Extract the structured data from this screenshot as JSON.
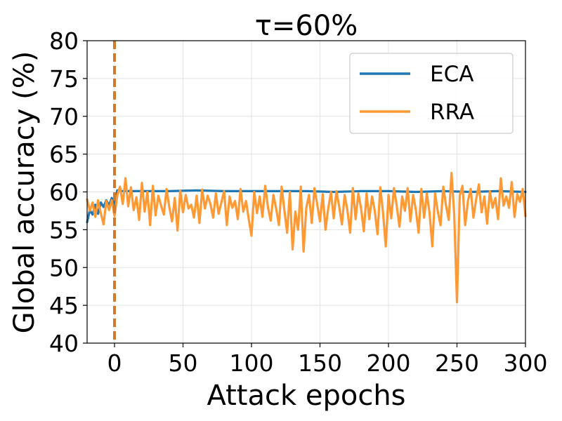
{
  "chart_data": {
    "type": "line",
    "title": "τ=60%",
    "xlabel": "Attack epochs",
    "ylabel": "Global accuracy (%)",
    "xlim": [
      -20,
      300
    ],
    "ylim": [
      40,
      80
    ],
    "xticks": [
      0,
      50,
      100,
      150,
      200,
      250,
      300
    ],
    "yticks": [
      40,
      45,
      50,
      55,
      60,
      65,
      70,
      75,
      80
    ],
    "grid": true,
    "legend_position": "top-right",
    "attack_start_x": 0,
    "colors": {
      "ECA": "#1f77b4",
      "RRA": "#ff9933",
      "marker": "#d07a30"
    },
    "series": [
      {
        "name": "ECA",
        "color": "#1f77b4",
        "x": [
          -20,
          -18,
          -16,
          -14,
          -12,
          -10,
          -8,
          -6,
          -4,
          -2,
          0,
          2,
          5,
          10,
          20,
          40,
          60,
          80,
          100,
          120,
          140,
          160,
          180,
          200,
          220,
          240,
          260,
          280,
          300
        ],
        "values": [
          56.0,
          57.6,
          57.0,
          58.3,
          57.1,
          58.6,
          58.0,
          58.9,
          58.2,
          59.2,
          58.4,
          60.2,
          60.1,
          60.1,
          60.1,
          60.1,
          60.2,
          60.1,
          60.1,
          60.1,
          60.1,
          60.0,
          60.1,
          60.1,
          60.0,
          60.1,
          60.0,
          60.1,
          60.0
        ]
      },
      {
        "name": "RRA",
        "color": "#ff9933",
        "x": [
          -20,
          -18,
          -16,
          -14,
          -12,
          -10,
          -8,
          -6,
          -4,
          -2,
          0,
          2,
          4,
          6,
          8,
          10,
          12,
          14,
          16,
          18,
          20,
          22,
          24,
          26,
          28,
          30,
          32,
          34,
          36,
          38,
          40,
          42,
          44,
          46,
          48,
          50,
          52,
          54,
          56,
          58,
          60,
          62,
          64,
          66,
          68,
          70,
          72,
          74,
          76,
          78,
          80,
          82,
          84,
          86,
          88,
          90,
          92,
          94,
          96,
          98,
          100,
          102,
          104,
          106,
          108,
          110,
          112,
          114,
          116,
          118,
          120,
          122,
          124,
          126,
          128,
          130,
          132,
          134,
          136,
          138,
          140,
          142,
          144,
          146,
          148,
          150,
          152,
          154,
          156,
          158,
          160,
          162,
          164,
          166,
          168,
          170,
          172,
          174,
          176,
          178,
          180,
          182,
          184,
          186,
          188,
          190,
          192,
          194,
          196,
          198,
          200,
          202,
          204,
          206,
          208,
          210,
          212,
          214,
          216,
          218,
          220,
          222,
          224,
          226,
          228,
          230,
          232,
          234,
          236,
          238,
          240,
          242,
          244,
          246,
          248,
          250,
          252,
          254,
          256,
          258,
          260,
          262,
          264,
          266,
          268,
          270,
          272,
          274,
          276,
          278,
          280,
          282,
          284,
          286,
          288,
          290,
          292,
          294,
          296,
          298,
          300
        ],
        "values": [
          59.0,
          57.5,
          58.6,
          56.7,
          58.9,
          57.2,
          55.7,
          58.8,
          57.6,
          58.9,
          56.8,
          59.5,
          60.7,
          58.4,
          61.8,
          58.1,
          60.6,
          57.6,
          59.3,
          56.3,
          61.2,
          57.4,
          60.0,
          55.6,
          60.8,
          56.9,
          59.5,
          58.2,
          57.0,
          60.4,
          58.0,
          56.1,
          59.2,
          54.9,
          60.2,
          57.3,
          59.6,
          57.8,
          58.3,
          56.6,
          59.5,
          55.9,
          60.3,
          57.8,
          59.5,
          58.4,
          56.6,
          59.8,
          57.1,
          58.6,
          60.1,
          55.6,
          59.4,
          57.9,
          58.8,
          56.4,
          60.4,
          57.4,
          58.8,
          56.4,
          54.2,
          60.0,
          57.2,
          59.4,
          56.7,
          60.8,
          58.0,
          56.2,
          59.6,
          57.8,
          55.6,
          60.7,
          57.6,
          54.6,
          60.0,
          52.4,
          57.4,
          55.0,
          60.7,
          52.1,
          57.9,
          59.6,
          55.9,
          60.5,
          58.3,
          56.1,
          59.7,
          55.0,
          57.8,
          60.0,
          56.5,
          60.1,
          58.1,
          55.7,
          59.6,
          57.6,
          54.6,
          60.5,
          56.4,
          59.8,
          57.8,
          54.8,
          59.8,
          56.4,
          59.4,
          57.5,
          54.4,
          60.6,
          57.3,
          52.8,
          59.6,
          56.5,
          60.5,
          58.2,
          55.4,
          59.4,
          57.5,
          60.5,
          56.1,
          59.6,
          57.6,
          54.6,
          60.4,
          56.6,
          59.8,
          57.2,
          52.8,
          59.8,
          57.4,
          55.6,
          60.7,
          58.2,
          56.3,
          62.5,
          57.0,
          45.4,
          59.5,
          60.8,
          55.6,
          58.8,
          60.4,
          56.6,
          59.0,
          61.0,
          57.3,
          59.4,
          55.8,
          60.1,
          57.9,
          59.2,
          56.4,
          61.8,
          58.2,
          59.4,
          57.9,
          61.3,
          56.7,
          59.7,
          58.7,
          60.4,
          56.8
        ]
      }
    ]
  }
}
